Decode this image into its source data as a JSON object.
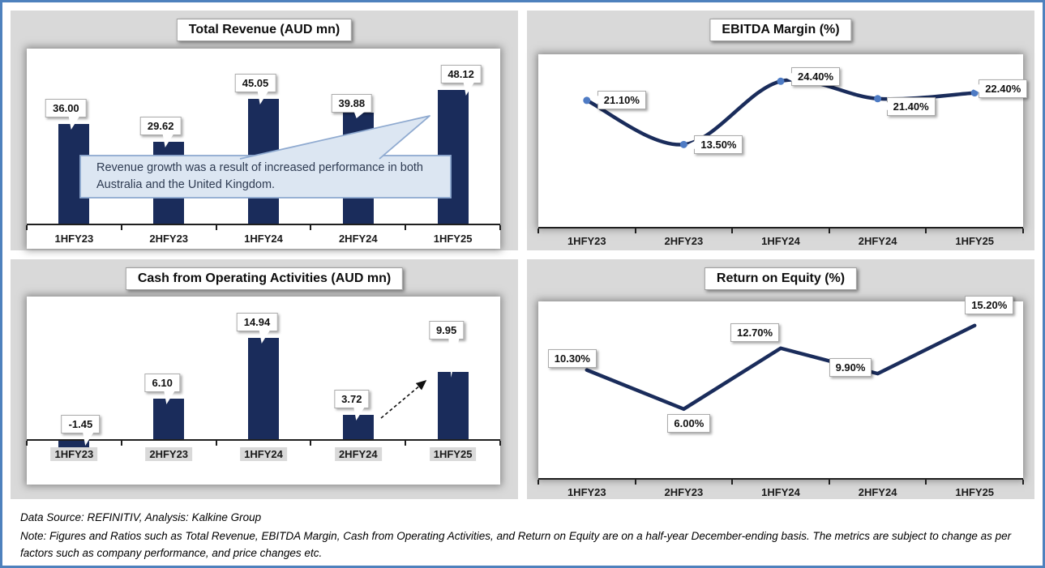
{
  "chart_data": [
    {
      "id": "total-revenue",
      "type": "bar",
      "title": "Total Revenue (AUD mn)",
      "categories": [
        "1HFY23",
        "2HFY23",
        "1HFY24",
        "2HFY24",
        "1HFY25"
      ],
      "values": [
        36.0,
        29.62,
        45.05,
        39.88,
        48.12
      ],
      "labels": [
        "36.00",
        "29.62",
        "45.05",
        "39.88",
        "48.12"
      ],
      "ylim": [
        0,
        65
      ],
      "ylabel": "",
      "xlabel": "",
      "grid": false,
      "legend": "none",
      "annotation": "Revenue growth was a result of increased performance in both Australia and the United Kingdom."
    },
    {
      "id": "ebitda-margin",
      "type": "line",
      "title": "EBITDA Margin (%)",
      "categories": [
        "1HFY23",
        "2HFY23",
        "1HFY24",
        "2HFY24",
        "1HFY25"
      ],
      "values": [
        21.1,
        13.5,
        24.4,
        21.4,
        22.4
      ],
      "labels": [
        "21.10%",
        "13.50%",
        "24.40%",
        "21.40%",
        "22.40%"
      ],
      "ylim": [
        0,
        30
      ],
      "ylabel": "",
      "xlabel": "",
      "grid": false,
      "legend": "none",
      "smooth": true,
      "markers": true
    },
    {
      "id": "cash-operating-activities",
      "type": "bar",
      "title": "Cash from Operating Activities (AUD mn)",
      "categories": [
        "1HFY23",
        "2HFY23",
        "1HFY24",
        "2HFY24",
        "1HFY25"
      ],
      "values": [
        -1.45,
        6.1,
        14.94,
        3.72,
        9.95
      ],
      "labels": [
        "-1.45",
        "6.10",
        "14.94",
        "3.72",
        "9.95"
      ],
      "ylim": [
        -6.5,
        21
      ],
      "ylabel": "",
      "xlabel": "",
      "grid": false,
      "legend": "none",
      "trend_arrow": true
    },
    {
      "id": "return-on-equity",
      "type": "line",
      "title": "Return on Equity (%)",
      "categories": [
        "1HFY23",
        "2HFY23",
        "1HFY24",
        "2HFY24",
        "1HFY25"
      ],
      "values": [
        10.3,
        6.0,
        12.7,
        9.9,
        15.2
      ],
      "labels": [
        "10.30%",
        "6.00%",
        "12.70%",
        "9.90%",
        "15.20%"
      ],
      "ylim": [
        0,
        18
      ],
      "ylabel": "",
      "xlabel": "",
      "grid": false,
      "legend": "none",
      "smooth": false,
      "markers": false
    }
  ],
  "footer": {
    "source": "Data Source: REFINITIV, Analysis: Kalkine Group",
    "note": "Note: Figures and Ratios such as Total Revenue, EBITDA Margin, Cash from Operating Activities, and Return on Equity are on a half-year December-ending basis. The metrics are subject to change as per factors such as company performance, and price changes etc."
  },
  "colors": {
    "series_navy": "#1A2C5B",
    "marker_blue": "#4E7BC4",
    "frame_blue": "#4E81BD",
    "panel_gray": "#D9D9D9",
    "bubble_fill": "#DCE6F2",
    "bubble_border": "#8FAAD0",
    "axis_black": "#1F1F1F"
  }
}
